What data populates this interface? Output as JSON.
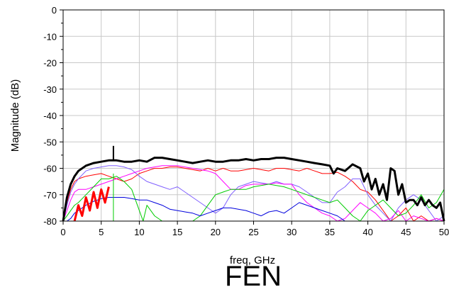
{
  "chart_data": {
    "type": "line",
    "xlabel": "freq, GHz",
    "ylabel": "Magnitude (dB)",
    "footer_label": "FEN",
    "xlim": [
      0,
      50
    ],
    "ylim": [
      -80,
      0
    ],
    "x_ticks": [
      "0",
      "5",
      "10",
      "15",
      "20",
      "25",
      "30",
      "35",
      "40",
      "45",
      "50"
    ],
    "y_ticks": [
      "0",
      "-10",
      "-20",
      "-30",
      "-40",
      "-50",
      "-60",
      "-70",
      "-80"
    ],
    "grid": true,
    "legend": "none",
    "marker": {
      "x": 6.6,
      "y_top": -51.5,
      "color": "#000000"
    },
    "green_marker": {
      "x": 6.6,
      "y_top": -62,
      "y_bottom": -80,
      "color": "#00cc00"
    },
    "series": [
      {
        "color": "#000000",
        "width": 3,
        "x": [
          0,
          0.5,
          1,
          1.5,
          2,
          3,
          4,
          5,
          6,
          7,
          8,
          9,
          10,
          11,
          12,
          13,
          14,
          15,
          16,
          17,
          18,
          19,
          20,
          21,
          22,
          23,
          24,
          25,
          26,
          27,
          28,
          29,
          30,
          31,
          32,
          33,
          34,
          35,
          35.5,
          36,
          37,
          38,
          39,
          39.5,
          40,
          40.5,
          41,
          41.5,
          42,
          42.5,
          43,
          43.5,
          44,
          44.5,
          45,
          45.5,
          46,
          46.5,
          47,
          47.5,
          48,
          48.5,
          49,
          49.5,
          50
        ],
        "y": [
          -80,
          -71,
          -66,
          -63,
          -61,
          -59,
          -58,
          -57.5,
          -57,
          -57,
          -57.5,
          -57.5,
          -57,
          -57.5,
          -56,
          -56,
          -56.5,
          -57,
          -57.5,
          -58,
          -57.5,
          -57,
          -57.5,
          -57.5,
          -57,
          -57,
          -56.5,
          -57,
          -56.5,
          -56.5,
          -56,
          -56,
          -56.5,
          -57,
          -57.5,
          -58,
          -58.5,
          -59,
          -62,
          -60,
          -61,
          -58.5,
          -60,
          -65,
          -62,
          -68,
          -64,
          -70,
          -66,
          -72,
          -60,
          -61,
          -70,
          -66,
          -73,
          -72,
          -72,
          -74,
          -71,
          -74,
          -72,
          -74,
          -75,
          -73,
          -80
        ]
      },
      {
        "color": "#ff0000",
        "width": 1,
        "x": [
          0,
          0.5,
          1,
          1.5,
          2,
          3,
          4,
          5,
          6,
          7,
          8,
          9,
          10,
          11,
          12,
          13,
          14,
          15,
          16,
          17,
          18,
          19,
          20,
          21,
          22,
          23,
          24,
          25,
          26,
          27,
          28,
          29,
          30,
          31,
          32,
          33,
          34,
          35,
          36,
          37,
          38,
          39,
          40,
          41,
          42,
          43,
          44,
          45,
          46,
          47,
          48,
          49,
          50
        ],
        "y": [
          -80,
          -73,
          -68,
          -65,
          -64,
          -63,
          -62.5,
          -62,
          -63,
          -64,
          -65,
          -64,
          -62,
          -61,
          -60,
          -60,
          -59.5,
          -59.5,
          -60,
          -60.5,
          -61,
          -60,
          -61,
          -60,
          -61,
          -61,
          -60.5,
          -60,
          -60.5,
          -61,
          -60,
          -60,
          -60.5,
          -61,
          -60,
          -61,
          -62,
          -62,
          -61.5,
          -63,
          -65,
          -68,
          -69,
          -72,
          -76,
          -80,
          -78,
          -75,
          -80,
          -78,
          -80,
          -79,
          -80
        ]
      },
      {
        "color": "#8060ff",
        "width": 1,
        "x": [
          0,
          0.5,
          1,
          1.5,
          2,
          3,
          4,
          5,
          6,
          7,
          8,
          9,
          10,
          11,
          12,
          13,
          14,
          15,
          16,
          17,
          18,
          19,
          20,
          21,
          22,
          23,
          24,
          25,
          26,
          27,
          28,
          29,
          30,
          31,
          32,
          33,
          34,
          35,
          36,
          37,
          38,
          39,
          40,
          41,
          42,
          43,
          44,
          45,
          46,
          47,
          48,
          49,
          50
        ],
        "y": [
          -80,
          -74,
          -69,
          -66,
          -64,
          -61,
          -60,
          -59.5,
          -59,
          -59,
          -59.5,
          -60.5,
          -63,
          -65,
          -66,
          -67,
          -68,
          -67,
          -69,
          -71,
          -73,
          -75,
          -77,
          -75,
          -70,
          -67,
          -66,
          -65,
          -65.5,
          -66,
          -65,
          -66,
          -66,
          -67,
          -69,
          -71,
          -73,
          -73,
          -69,
          -67,
          -64,
          -64,
          -70,
          -74,
          -77,
          -80,
          -75,
          -72,
          -70,
          -72,
          -76,
          -80,
          -78
        ]
      },
      {
        "color": "#ff00ff",
        "width": 1,
        "x": [
          0,
          0.5,
          1,
          1.5,
          2,
          3,
          4,
          5,
          6,
          7,
          8,
          9,
          10,
          11,
          12,
          13,
          14,
          15,
          16,
          17,
          18,
          19,
          20,
          21,
          22,
          23,
          24,
          25,
          26,
          27,
          28,
          29,
          30,
          31,
          32,
          33,
          34,
          35,
          36,
          37,
          38,
          39,
          40,
          41,
          42,
          43,
          44,
          45,
          46,
          47,
          48,
          49,
          50
        ],
        "y": [
          -80,
          -76,
          -72,
          -69,
          -68,
          -68,
          -67,
          -66,
          -65,
          -64,
          -63,
          -62,
          -61,
          -60,
          -59.5,
          -59,
          -59,
          -59,
          -59.5,
          -60,
          -60.5,
          -61,
          -62,
          -65,
          -68,
          -68,
          -66.5,
          -66,
          -66,
          -66,
          -65.5,
          -66,
          -66,
          -70,
          -73,
          -75,
          -77,
          -78,
          -80,
          -79,
          -76,
          -73,
          -75,
          -77,
          -80,
          -79,
          -76,
          -80,
          -78,
          -79,
          -80,
          -79,
          -80
        ]
      },
      {
        "color": "#00cc00",
        "width": 1,
        "x": [
          0,
          0.5,
          1,
          1.5,
          2,
          3,
          4,
          5,
          6,
          7,
          8,
          9,
          10,
          10.5,
          11,
          12,
          13,
          14,
          15,
          16,
          17,
          18,
          19,
          20,
          21,
          22,
          23,
          24,
          25,
          26,
          27,
          28,
          29,
          30,
          31,
          32,
          33,
          34,
          35,
          36,
          37,
          38,
          39,
          40,
          41,
          42,
          43,
          44,
          45,
          46,
          47,
          48,
          49,
          50
        ],
        "y": [
          -80,
          -78,
          -76,
          -74,
          -73,
          -70,
          -67,
          -64,
          -64,
          -63,
          -65,
          -68,
          -76,
          -80,
          -74,
          -78,
          -80,
          -80,
          -80,
          -80,
          -80,
          -78,
          -74,
          -70,
          -69,
          -68,
          -68,
          -68,
          -67,
          -66.5,
          -66,
          -66.5,
          -67,
          -68,
          -69,
          -70,
          -71,
          -72,
          -73,
          -72,
          -75,
          -78,
          -80,
          -76,
          -74,
          -72,
          -75,
          -78,
          -77,
          -74,
          -70,
          -75,
          -73,
          -68
        ]
      },
      {
        "color": "#0000dd",
        "width": 1,
        "x": [
          0,
          0.5,
          1,
          1.5,
          2,
          3,
          4,
          5,
          6,
          7,
          8,
          9,
          10,
          11,
          12,
          13,
          14,
          15,
          16,
          17,
          18,
          19,
          20,
          21,
          22,
          23,
          24,
          25,
          26,
          27,
          28,
          29,
          30,
          31,
          32,
          33,
          34,
          35,
          36,
          37,
          38,
          39,
          40,
          41,
          42,
          43,
          44,
          45,
          46,
          47,
          48,
          49,
          50
        ],
        "y": [
          -80,
          -80,
          -79,
          -77,
          -76,
          -74,
          -72.5,
          -71.5,
          -71,
          -71,
          -71,
          -71.5,
          -72,
          -72,
          -73,
          -74,
          -75.5,
          -76,
          -76.5,
          -77,
          -78,
          -77,
          -76,
          -75,
          -75,
          -75.5,
          -76,
          -77,
          -78,
          -76.5,
          -76,
          -77,
          -75,
          -73,
          -74,
          -75,
          -76,
          -77,
          -78,
          -80,
          -80,
          -80,
          -80,
          -80,
          -80,
          -80,
          -80,
          -80,
          -80,
          -80,
          -80,
          -80,
          -80
        ]
      },
      {
        "color": "#ff0000",
        "width": 3,
        "x": [
          1.5,
          2,
          2.5,
          3,
          3.5,
          4,
          4.5,
          5,
          5.5,
          6
        ],
        "y": [
          -80,
          -74,
          -78,
          -71,
          -76,
          -69,
          -75,
          -68,
          -73,
          -67
        ]
      }
    ]
  }
}
